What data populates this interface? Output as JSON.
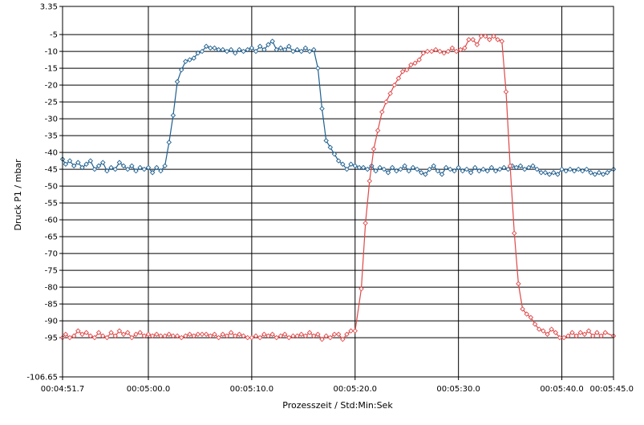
{
  "chart_data": {
    "type": "line",
    "xlabel": "Prozesszeit / Std:Min:Sek",
    "ylabel": "Druck P1 / mbar",
    "ylim": [
      -106.65,
      3.35
    ],
    "y_ticks": [
      3.35,
      -5,
      -10,
      -15,
      -20,
      -25,
      -30,
      -35,
      -40,
      -45,
      -50,
      -55,
      -60,
      -65,
      -70,
      -75,
      -80,
      -85,
      -90,
      -95,
      -106.65
    ],
    "xlim_seconds": [
      291.7,
      345
    ],
    "x_ticks": [
      {
        "t": 291.7,
        "label": "00:04:51.7"
      },
      {
        "t": 300,
        "label": "00:05:00.0"
      },
      {
        "t": 310,
        "label": "00:05:10.0"
      },
      {
        "t": 320,
        "label": "00:05:20.0"
      },
      {
        "t": 330,
        "label": "00:05:30.0"
      },
      {
        "t": 340,
        "label": "00:05:40.0"
      },
      {
        "t": 345,
        "label": "00:05:45.0"
      }
    ],
    "grid": true,
    "series": [
      {
        "color": "#1f5f8f",
        "marker": "diamond",
        "points": [
          [
            291.7,
            -42.0
          ],
          [
            292.0,
            -43.5
          ],
          [
            292.4,
            -42.5
          ],
          [
            292.8,
            -44.0
          ],
          [
            293.2,
            -43.0
          ],
          [
            293.6,
            -44.5
          ],
          [
            294.0,
            -43.5
          ],
          [
            294.4,
            -42.5
          ],
          [
            294.8,
            -45.0
          ],
          [
            295.2,
            -44.0
          ],
          [
            295.6,
            -43.0
          ],
          [
            296.0,
            -45.5
          ],
          [
            296.4,
            -44.5
          ],
          [
            296.8,
            -45.0
          ],
          [
            297.2,
            -43.0
          ],
          [
            297.6,
            -44.0
          ],
          [
            298.0,
            -45.0
          ],
          [
            298.4,
            -44.0
          ],
          [
            298.8,
            -45.5
          ],
          [
            299.2,
            -44.5
          ],
          [
            299.6,
            -45.0
          ],
          [
            300.0,
            -44.5
          ],
          [
            300.4,
            -46.0
          ],
          [
            300.8,
            -44.5
          ],
          [
            301.2,
            -45.5
          ],
          [
            301.6,
            -44.0
          ],
          [
            302.0,
            -37.0
          ],
          [
            302.4,
            -29.0
          ],
          [
            302.8,
            -19.0
          ],
          [
            303.2,
            -15.5
          ],
          [
            303.6,
            -13.0
          ],
          [
            304.0,
            -12.5
          ],
          [
            304.4,
            -12.0
          ],
          [
            304.8,
            -10.5
          ],
          [
            305.2,
            -10.0
          ],
          [
            305.6,
            -8.5
          ],
          [
            306.0,
            -9.0
          ],
          [
            306.4,
            -9.0
          ],
          [
            306.8,
            -9.5
          ],
          [
            307.2,
            -9.5
          ],
          [
            307.6,
            -10.0
          ],
          [
            308.0,
            -9.5
          ],
          [
            308.4,
            -10.5
          ],
          [
            308.8,
            -9.5
          ],
          [
            309.2,
            -10.0
          ],
          [
            309.6,
            -9.5
          ],
          [
            310.0,
            -9.0
          ],
          [
            310.4,
            -10.0
          ],
          [
            310.8,
            -8.5
          ],
          [
            311.2,
            -9.5
          ],
          [
            311.6,
            -8.0
          ],
          [
            312.0,
            -7.0
          ],
          [
            312.4,
            -9.5
          ],
          [
            312.8,
            -9.0
          ],
          [
            313.2,
            -9.5
          ],
          [
            313.6,
            -8.5
          ],
          [
            314.0,
            -10.0
          ],
          [
            314.4,
            -9.5
          ],
          [
            314.8,
            -10.0
          ],
          [
            315.2,
            -9.0
          ],
          [
            315.6,
            -10.0
          ],
          [
            316.0,
            -9.5
          ],
          [
            316.4,
            -15.0
          ],
          [
            316.8,
            -27.0
          ],
          [
            317.2,
            -36.5
          ],
          [
            317.6,
            -38.5
          ],
          [
            318.0,
            -40.5
          ],
          [
            318.4,
            -42.5
          ],
          [
            318.8,
            -43.5
          ],
          [
            319.2,
            -45.0
          ],
          [
            319.6,
            -43.5
          ],
          [
            320.0,
            -44.0
          ],
          [
            320.4,
            -44.5
          ],
          [
            320.8,
            -44.5
          ],
          [
            321.2,
            -45.0
          ],
          [
            321.6,
            -44.0
          ],
          [
            322.0,
            -45.5
          ],
          [
            322.4,
            -44.5
          ],
          [
            322.8,
            -45.0
          ],
          [
            323.2,
            -46.0
          ],
          [
            323.6,
            -44.5
          ],
          [
            324.0,
            -45.5
          ],
          [
            324.4,
            -45.0
          ],
          [
            324.8,
            -44.0
          ],
          [
            325.2,
            -45.5
          ],
          [
            325.6,
            -44.5
          ],
          [
            326.0,
            -45.0
          ],
          [
            326.4,
            -46.0
          ],
          [
            326.8,
            -46.5
          ],
          [
            327.2,
            -45.0
          ],
          [
            327.6,
            -44.0
          ],
          [
            328.0,
            -45.5
          ],
          [
            328.4,
            -46.5
          ],
          [
            328.8,
            -44.5
          ],
          [
            329.2,
            -45.0
          ],
          [
            329.6,
            -45.5
          ],
          [
            330.0,
            -44.5
          ],
          [
            330.4,
            -45.5
          ],
          [
            330.8,
            -45.0
          ],
          [
            331.2,
            -46.0
          ],
          [
            331.6,
            -44.5
          ],
          [
            332.0,
            -45.5
          ],
          [
            332.4,
            -45.0
          ],
          [
            332.8,
            -45.5
          ],
          [
            333.2,
            -44.5
          ],
          [
            333.6,
            -45.5
          ],
          [
            334.0,
            -45.0
          ],
          [
            334.4,
            -44.5
          ],
          [
            334.8,
            -45.0
          ],
          [
            335.2,
            -44.0
          ],
          [
            335.6,
            -44.5
          ],
          [
            336.0,
            -44.0
          ],
          [
            336.4,
            -45.0
          ],
          [
            336.8,
            -44.5
          ],
          [
            337.2,
            -44.0
          ],
          [
            337.6,
            -45.0
          ],
          [
            338.0,
            -46.0
          ],
          [
            338.4,
            -46.0
          ],
          [
            338.8,
            -46.5
          ],
          [
            339.2,
            -46.0
          ],
          [
            339.6,
            -46.5
          ],
          [
            340.0,
            -45.0
          ],
          [
            340.4,
            -45.5
          ],
          [
            340.8,
            -45.0
          ],
          [
            341.2,
            -45.5
          ],
          [
            341.6,
            -45.0
          ],
          [
            342.0,
            -45.5
          ],
          [
            342.4,
            -45.0
          ],
          [
            342.8,
            -46.0
          ],
          [
            343.2,
            -46.5
          ],
          [
            343.6,
            -46.0
          ],
          [
            344.0,
            -46.5
          ],
          [
            344.4,
            -46.0
          ],
          [
            345.0,
            -45.0
          ]
        ]
      },
      {
        "color": "#e04848",
        "marker": "diamond",
        "points": [
          [
            291.7,
            -95.0
          ],
          [
            292.0,
            -94.0
          ],
          [
            292.4,
            -95.0
          ],
          [
            292.8,
            -94.5
          ],
          [
            293.2,
            -93.0
          ],
          [
            293.6,
            -94.0
          ],
          [
            294.0,
            -93.5
          ],
          [
            294.4,
            -94.5
          ],
          [
            294.8,
            -95.0
          ],
          [
            295.2,
            -93.5
          ],
          [
            295.6,
            -94.5
          ],
          [
            296.0,
            -95.0
          ],
          [
            296.4,
            -93.5
          ],
          [
            296.8,
            -94.5
          ],
          [
            297.2,
            -93.0
          ],
          [
            297.6,
            -94.0
          ],
          [
            298.0,
            -93.5
          ],
          [
            298.4,
            -95.0
          ],
          [
            298.8,
            -94.0
          ],
          [
            299.2,
            -93.5
          ],
          [
            299.6,
            -94.5
          ],
          [
            300.0,
            -94.0
          ],
          [
            300.4,
            -94.5
          ],
          [
            300.8,
            -94.0
          ],
          [
            301.2,
            -94.5
          ],
          [
            301.6,
            -94.5
          ],
          [
            302.0,
            -94.0
          ],
          [
            302.4,
            -94.5
          ],
          [
            302.8,
            -94.5
          ],
          [
            303.2,
            -95.0
          ],
          [
            303.6,
            -94.5
          ],
          [
            304.0,
            -94.0
          ],
          [
            304.4,
            -94.5
          ],
          [
            304.8,
            -94.0
          ],
          [
            305.2,
            -94.0
          ],
          [
            305.6,
            -94.0
          ],
          [
            306.0,
            -94.5
          ],
          [
            306.4,
            -94.0
          ],
          [
            306.8,
            -95.0
          ],
          [
            307.2,
            -94.0
          ],
          [
            307.6,
            -94.5
          ],
          [
            308.0,
            -93.5
          ],
          [
            308.4,
            -94.5
          ],
          [
            308.8,
            -94.0
          ],
          [
            309.2,
            -94.5
          ],
          [
            309.6,
            -95.0
          ],
          [
            310.0,
            -95.0
          ],
          [
            310.4,
            -94.5
          ],
          [
            310.8,
            -95.0
          ],
          [
            311.2,
            -94.0
          ],
          [
            311.6,
            -94.5
          ],
          [
            312.0,
            -94.0
          ],
          [
            312.4,
            -95.0
          ],
          [
            312.8,
            -94.5
          ],
          [
            313.2,
            -94.0
          ],
          [
            313.6,
            -95.0
          ],
          [
            314.0,
            -94.5
          ],
          [
            314.4,
            -94.5
          ],
          [
            314.8,
            -94.0
          ],
          [
            315.2,
            -94.5
          ],
          [
            315.6,
            -93.5
          ],
          [
            316.0,
            -94.5
          ],
          [
            316.4,
            -94.0
          ],
          [
            316.8,
            -95.5
          ],
          [
            317.2,
            -94.5
          ],
          [
            317.6,
            -95.0
          ],
          [
            318.0,
            -94.0
          ],
          [
            318.4,
            -94.0
          ],
          [
            318.8,
            -95.5
          ],
          [
            319.2,
            -94.0
          ],
          [
            319.6,
            -93.0
          ],
          [
            320.0,
            -93.0
          ],
          [
            320.6,
            -80.5
          ],
          [
            321.0,
            -61.0
          ],
          [
            321.4,
            -48.5
          ],
          [
            321.8,
            -39.0
          ],
          [
            322.2,
            -33.5
          ],
          [
            322.6,
            -28.0
          ],
          [
            323.0,
            -25.0
          ],
          [
            323.4,
            -22.5
          ],
          [
            323.8,
            -20.0
          ],
          [
            324.2,
            -18.0
          ],
          [
            324.6,
            -16.0
          ],
          [
            325.0,
            -15.5
          ],
          [
            325.4,
            -14.0
          ],
          [
            325.8,
            -13.5
          ],
          [
            326.2,
            -12.5
          ],
          [
            326.6,
            -10.5
          ],
          [
            327.0,
            -10.0
          ],
          [
            327.4,
            -10.0
          ],
          [
            327.8,
            -9.5
          ],
          [
            328.2,
            -10.0
          ],
          [
            328.6,
            -10.5
          ],
          [
            329.0,
            -10.0
          ],
          [
            329.4,
            -9.0
          ],
          [
            329.8,
            -10.0
          ],
          [
            330.2,
            -9.5
          ],
          [
            330.6,
            -9.0
          ],
          [
            331.0,
            -6.5
          ],
          [
            331.4,
            -6.5
          ],
          [
            331.8,
            -8.0
          ],
          [
            332.2,
            -5.5
          ],
          [
            332.6,
            -5.5
          ],
          [
            333.0,
            -6.5
          ],
          [
            333.4,
            -5.5
          ],
          [
            333.8,
            -6.5
          ],
          [
            334.2,
            -7.0
          ],
          [
            334.6,
            -22.0
          ],
          [
            335.0,
            -44.0
          ],
          [
            335.4,
            -64.0
          ],
          [
            335.8,
            -79.0
          ],
          [
            336.2,
            -86.5
          ],
          [
            336.6,
            -88.0
          ],
          [
            337.0,
            -89.0
          ],
          [
            337.4,
            -91.0
          ],
          [
            337.8,
            -92.5
          ],
          [
            338.2,
            -93.0
          ],
          [
            338.6,
            -94.0
          ],
          [
            339.0,
            -92.5
          ],
          [
            339.4,
            -93.5
          ],
          [
            339.8,
            -95.0
          ],
          [
            340.2,
            -95.0
          ],
          [
            340.6,
            -94.5
          ],
          [
            341.0,
            -93.5
          ],
          [
            341.4,
            -94.5
          ],
          [
            341.8,
            -93.5
          ],
          [
            342.2,
            -94.0
          ],
          [
            342.6,
            -93.0
          ],
          [
            343.0,
            -94.5
          ],
          [
            343.4,
            -93.5
          ],
          [
            343.8,
            -94.5
          ],
          [
            344.2,
            -93.5
          ],
          [
            345.0,
            -94.5
          ]
        ]
      }
    ]
  }
}
